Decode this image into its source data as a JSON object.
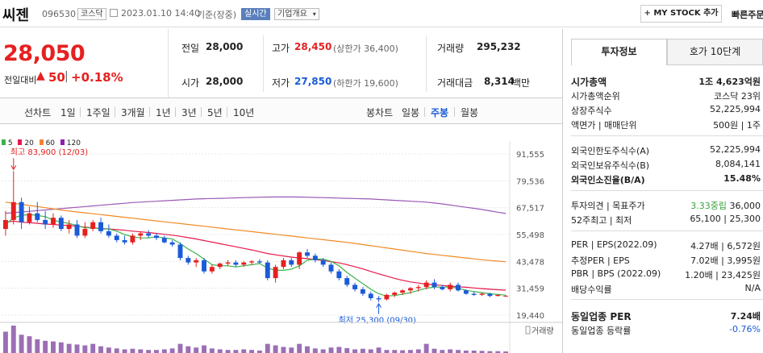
{
  "header": {
    "stock_name": "씨젠",
    "stock_code": "096530",
    "market_badge": "코스닥",
    "timestamp": "2023.01.10 14:40",
    "time_basis": "기준(장중)",
    "realtime_badge": "실시간",
    "company_info_button": "기업개요",
    "my_stock_button": "MY STOCK 추가",
    "quick_order": "빠른주문"
  },
  "price": {
    "current": "28,050",
    "change_label": "전일대비",
    "change_value": "50",
    "change_percent": "+0.18%"
  },
  "summary": {
    "prev_close_label": "전일",
    "prev_close": "28,000",
    "high_label": "고가",
    "high": "28,450",
    "upper_limit": "(상한가 36,400)",
    "volume_label": "거래량",
    "volume": "295,232",
    "open_label": "시가",
    "open": "28,000",
    "low_label": "저가",
    "low": "27,850",
    "lower_limit": "(하한가 19,600)",
    "trade_value_label": "거래대금",
    "trade_value": "8,314",
    "trade_value_unit": "백만"
  },
  "period_tabs": {
    "line_chart": "선차트",
    "items": [
      "1일",
      "1주일",
      "3개월",
      "1년",
      "3년",
      "5년",
      "10년"
    ],
    "candle_chart": "봉차트",
    "candle_items": [
      "일봉",
      "주봉",
      "월봉"
    ],
    "active_candle": "주봉"
  },
  "chart": {
    "legend": [
      {
        "label": "5",
        "color": "#3cb44b"
      },
      {
        "label": "20",
        "color": "#e6194b"
      },
      {
        "label": "60",
        "color": "#f58231"
      },
      {
        "label": "120",
        "color": "#911eb4"
      }
    ],
    "high_note": "최고 83,900 (12/03)",
    "low_note": "최저 25,300 (09/30)",
    "y_ticks": [
      "91,555",
      "79,536",
      "67,517",
      "55,498",
      "43,478",
      "31,459",
      "19,440"
    ],
    "volume_label": "거래량"
  },
  "chart_data": {
    "type": "candlestick",
    "ylim": [
      19440,
      91555
    ],
    "y_ticks": [
      91555,
      79536,
      67517,
      55498,
      43478,
      31459,
      19440
    ],
    "candles": [
      [
        58000,
        66000,
        55000,
        62000
      ],
      [
        62000,
        83900,
        60000,
        70000
      ],
      [
        70000,
        72000,
        58000,
        61000
      ],
      [
        61000,
        68000,
        60000,
        65000
      ],
      [
        65000,
        70000,
        61000,
        62000
      ],
      [
        62000,
        66000,
        58000,
        60000
      ],
      [
        60000,
        65000,
        58500,
        63000
      ],
      [
        63000,
        64000,
        57000,
        58000
      ],
      [
        58000,
        62000,
        56000,
        60000
      ],
      [
        60000,
        62000,
        54000,
        55000
      ],
      [
        55000,
        61000,
        54000,
        58000
      ],
      [
        58000,
        62000,
        57000,
        61000
      ],
      [
        61000,
        63000,
        56000,
        57000
      ],
      [
        57000,
        60000,
        54000,
        55000
      ],
      [
        55000,
        56000,
        52000,
        53000
      ],
      [
        53000,
        55000,
        51000,
        52000
      ],
      [
        52000,
        56000,
        51000,
        55000
      ],
      [
        55000,
        57000,
        53000,
        56000
      ],
      [
        56000,
        57500,
        54000,
        55000
      ],
      [
        55000,
        56000,
        53000,
        54000
      ],
      [
        54000,
        55000,
        51500,
        52000
      ],
      [
        52000,
        53000,
        50000,
        51000
      ],
      [
        51000,
        52000,
        44000,
        45000
      ],
      [
        45000,
        46000,
        42000,
        43000
      ],
      [
        43000,
        45000,
        41000,
        44000
      ],
      [
        44000,
        45000,
        38000,
        39000
      ],
      [
        39000,
        42000,
        38000,
        41000
      ],
      [
        41000,
        43000,
        40000,
        42500
      ],
      [
        42500,
        44000,
        41500,
        43000
      ],
      [
        43000,
        44000,
        41000,
        42000
      ],
      [
        42000,
        43500,
        41000,
        43000
      ],
      [
        43000,
        44000,
        42000,
        43500
      ],
      [
        43500,
        44500,
        42500,
        43000
      ],
      [
        43000,
        44000,
        35000,
        36000
      ],
      [
        36000,
        42000,
        34000,
        41000
      ],
      [
        41000,
        45000,
        40000,
        44000
      ],
      [
        44000,
        45000,
        41000,
        42000
      ],
      [
        42000,
        48000,
        40000,
        47500
      ],
      [
        47500,
        49000,
        45000,
        46000
      ],
      [
        46000,
        47000,
        43000,
        44000
      ],
      [
        44000,
        45000,
        41000,
        42000
      ],
      [
        42000,
        43000,
        38000,
        39000
      ],
      [
        39000,
        40000,
        35000,
        36000
      ],
      [
        36000,
        37000,
        32000,
        33000
      ],
      [
        33000,
        34000,
        30000,
        31000
      ],
      [
        31000,
        32000,
        28000,
        29000
      ],
      [
        29000,
        30000,
        26000,
        27000
      ],
      [
        27000,
        28000,
        25300,
        26500
      ],
      [
        26500,
        29000,
        26000,
        28500
      ],
      [
        28500,
        30000,
        27500,
        29500
      ],
      [
        29500,
        31000,
        28500,
        30500
      ],
      [
        30500,
        32000,
        29000,
        31500
      ],
      [
        31500,
        33000,
        30000,
        32000
      ],
      [
        32000,
        35000,
        31000,
        34000
      ],
      [
        34000,
        35500,
        31000,
        32000
      ],
      [
        32000,
        33000,
        30500,
        31000
      ],
      [
        31000,
        34000,
        30000,
        33000
      ],
      [
        33000,
        34000,
        30000,
        30500
      ],
      [
        30500,
        31000,
        28500,
        29000
      ],
      [
        29000,
        30000,
        28000,
        28500
      ],
      [
        28500,
        29500,
        28000,
        29000
      ],
      [
        29000,
        29500,
        27500,
        28000
      ],
      [
        28000,
        28800,
        27850,
        28500
      ],
      [
        28000,
        28450,
        27850,
        28050
      ]
    ],
    "ma5": [
      60000,
      63000,
      64000,
      64500,
      64000,
      63500,
      62000,
      61000,
      60500,
      59500,
      58500,
      58500,
      58000,
      58000,
      57000,
      55500,
      54500,
      54000,
      54000,
      54500,
      54000,
      53500,
      51500,
      49000,
      47000,
      44500,
      42000,
      41500,
      41500,
      41000,
      41500,
      42000,
      42500,
      40500,
      39500,
      39500,
      40000,
      41500,
      44000,
      44500,
      44500,
      43500,
      41500,
      38500,
      36000,
      33500,
      31000,
      29000,
      28000,
      28200,
      28800,
      29500,
      30500,
      31500,
      32000,
      32000,
      32000,
      31500,
      30500,
      30000,
      29500,
      29000,
      28700,
      28400
    ],
    "ma20": [
      61000,
      61500,
      61000,
      60800,
      60500,
      60200,
      60000,
      59700,
      59500,
      59200,
      58800,
      58500,
      58200,
      58000,
      57700,
      57400,
      57000,
      56700,
      56400,
      56000,
      55600,
      55200,
      54700,
      54100,
      53500,
      52800,
      52100,
      51400,
      50700,
      50000,
      49300,
      48600,
      47800,
      47000,
      46400,
      45900,
      45400,
      45000,
      44700,
      44300,
      43900,
      43400,
      42800,
      42000,
      41100,
      40100,
      39000,
      37900,
      36900,
      35900,
      35000,
      34300,
      33800,
      33300,
      33000,
      32700,
      32400,
      32100,
      31900,
      31600,
      31300,
      31000,
      30800,
      30600
    ],
    "ma60": [
      70000,
      69500,
      69000,
      68500,
      68000,
      67500,
      67000,
      66500,
      66000,
      65600,
      65200,
      64800,
      64400,
      64000,
      63600,
      63200,
      62800,
      62400,
      62000,
      61600,
      61200,
      60800,
      60400,
      60000,
      59600,
      59200,
      58800,
      58400,
      58000,
      57600,
      57200,
      56800,
      56400,
      56000,
      55600,
      55200,
      54800,
      54400,
      54000,
      53600,
      53200,
      52800,
      52400,
      52000,
      51500,
      51000,
      50500,
      50000,
      49500,
      49000,
      48500,
      48000,
      47500,
      47000,
      46600,
      46200,
      45800,
      45400,
      45000,
      44600,
      44200,
      43900,
      43600,
      43300
    ],
    "ma120": [
      65000,
      65300,
      65600,
      65900,
      66200,
      66500,
      66800,
      67100,
      67400,
      67700,
      68000,
      68300,
      68600,
      68900,
      69200,
      69500,
      69800,
      70000,
      70200,
      70400,
      70600,
      70800,
      71000,
      71200,
      71400,
      71500,
      71600,
      71700,
      71800,
      71900,
      72000,
      72100,
      72200,
      72250,
      72300,
      72300,
      72300,
      72250,
      72200,
      72100,
      72000,
      71900,
      71800,
      71700,
      71600,
      71500,
      71400,
      71200,
      71000,
      70800,
      70600,
      70400,
      70200,
      70000,
      69600,
      69200,
      68700,
      68200,
      67700,
      67200,
      66700,
      66100,
      65500,
      64900
    ],
    "volume": [
      70,
      90,
      60,
      55,
      45,
      40,
      38,
      35,
      30,
      28,
      25,
      30,
      22,
      18,
      15,
      12,
      14,
      12,
      10,
      10,
      12,
      15,
      30,
      22,
      18,
      25,
      15,
      12,
      10,
      10,
      12,
      10,
      8,
      30,
      25,
      20,
      18,
      30,
      22,
      15,
      12,
      18,
      20,
      16,
      12,
      14,
      12,
      18,
      10,
      10,
      9,
      10,
      12,
      30,
      14,
      10,
      12,
      10,
      8,
      8,
      7,
      6,
      6,
      5
    ]
  },
  "right_panel": {
    "tabs": [
      "투자정보",
      "호가 10단계"
    ],
    "rows": [
      {
        "label": "시가총액",
        "value": "1조 4,623억원"
      },
      {
        "label": "시가총액순위",
        "value": "코스닥 23위"
      },
      {
        "label": "상장주식수",
        "value": "52,225,994"
      },
      {
        "label": "액면가 | 매매단위",
        "value": "500원 | 1주"
      },
      {
        "label": "외국인한도주식수(A)",
        "value": "52,225,994"
      },
      {
        "label": "외국인보유주식수(B)",
        "value": "8,084,141"
      },
      {
        "label": "외국인소진율(B/A)",
        "value": "15.48%"
      },
      {
        "label": "투자의견 | 목표주가",
        "value_opinion": "3.33중립",
        "value_target": "36,000"
      },
      {
        "label": "52주최고 | 최저",
        "value": "65,100 | 25,300"
      },
      {
        "label": "PER | EPS(2022.09)",
        "value": "4.27배 | 6,572원"
      },
      {
        "label": "추정PER | EPS",
        "value": "7.02배 | 3,995원"
      },
      {
        "label": "PBR | BPS (2022.09)",
        "value": "1.20배 | 23,425원"
      },
      {
        "label": "배당수익률",
        "value": "N/A"
      },
      {
        "label": "동일업종 PER",
        "value": "7.24배"
      },
      {
        "label": "동일업종 등락률",
        "value": "-0.76%"
      }
    ]
  }
}
